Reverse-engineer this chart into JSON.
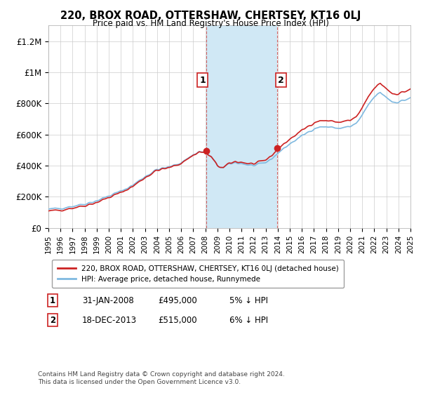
{
  "title": "220, BROX ROAD, OTTERSHAW, CHERTSEY, KT16 0LJ",
  "subtitle": "Price paid vs. HM Land Registry's House Price Index (HPI)",
  "ylabel_ticks": [
    "£0",
    "£200K",
    "£400K",
    "£600K",
    "£800K",
    "£1M",
    "£1.2M"
  ],
  "ytick_values": [
    0,
    200000,
    400000,
    600000,
    800000,
    1000000,
    1200000
  ],
  "ylim": [
    0,
    1300000
  ],
  "legend_line1": "220, BROX ROAD, OTTERSHAW, CHERTSEY, KT16 0LJ (detached house)",
  "legend_line2": "HPI: Average price, detached house, Runnymede",
  "annotation1_date": "31-JAN-2008",
  "annotation1_price": "£495,000",
  "annotation1_hpi": "5% ↓ HPI",
  "annotation2_date": "18-DEC-2013",
  "annotation2_price": "£515,000",
  "annotation2_hpi": "6% ↓ HPI",
  "footer": "Contains HM Land Registry data © Crown copyright and database right 2024.\nThis data is licensed under the Open Government Licence v3.0.",
  "hpi_color": "#7fb9e0",
  "price_color": "#cc2222",
  "shade_color": "#d0e8f5",
  "background_color": "#ffffff",
  "grid_color": "#cccccc",
  "sale1_x": 2008.08,
  "sale1_y": 495000,
  "sale2_x": 2013.96,
  "sale2_y": 515000,
  "xmin": 1995,
  "xmax": 2025
}
